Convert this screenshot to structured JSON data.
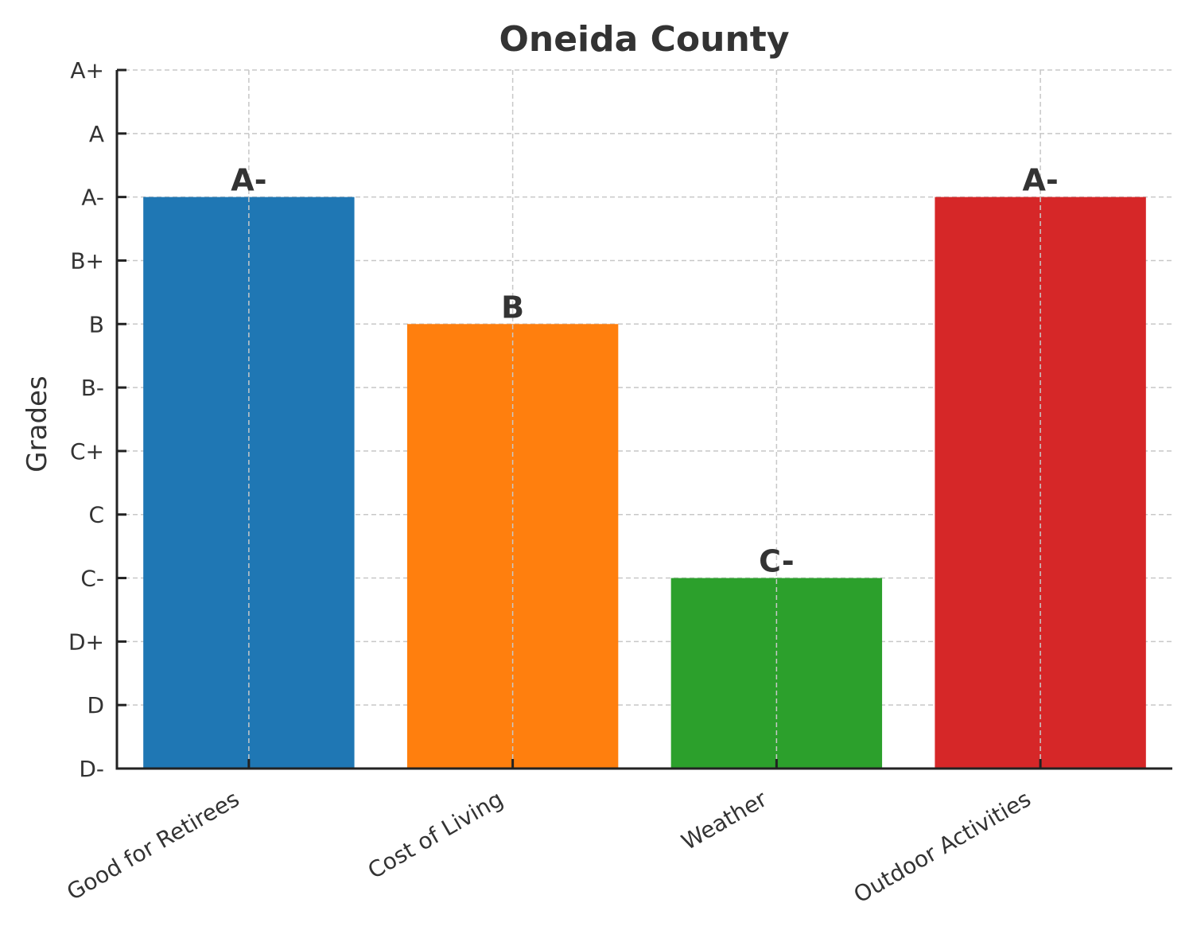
{
  "chart_data": {
    "type": "bar",
    "title": "Oneida County",
    "xlabel": "",
    "ylabel": "Grades",
    "y_tick_labels": [
      "D-",
      "D",
      "D+",
      "C-",
      "C",
      "C+",
      "B-",
      "B",
      "B+",
      "A-",
      "A",
      "A+"
    ],
    "ylim": [
      0,
      11
    ],
    "categories": [
      "Good for Retirees",
      "Cost of Living",
      "Weather",
      "Outdoor Activities"
    ],
    "values": [
      9,
      7,
      3,
      9
    ],
    "value_labels": [
      "A-",
      "B",
      "C-",
      "A-"
    ],
    "colors": [
      "#1f77b4",
      "#ff7f0e",
      "#2ca02c",
      "#d62728"
    ],
    "grid": true,
    "legend": "none"
  }
}
